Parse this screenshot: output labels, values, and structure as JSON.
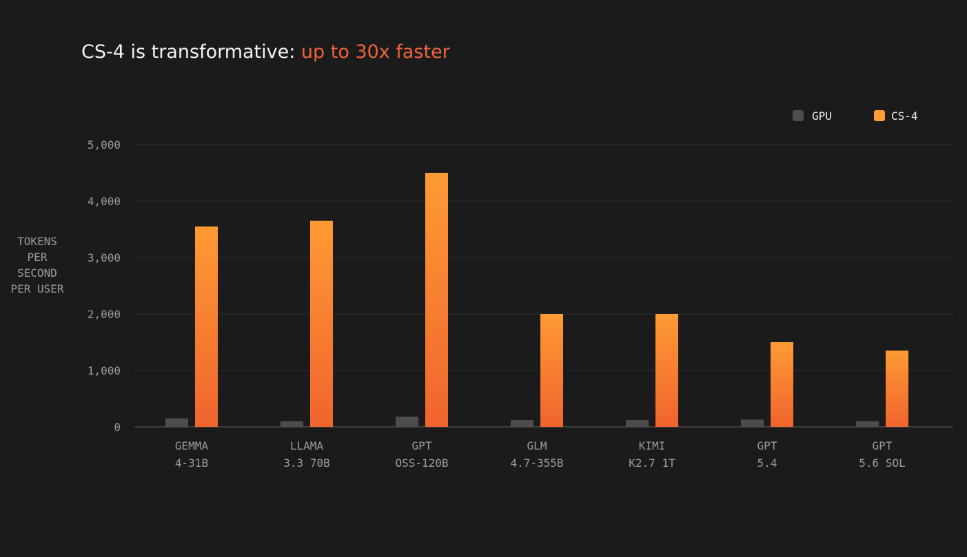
{
  "chart_data": {
    "type": "bar",
    "title": {
      "main": "CS-4 is transformative: ",
      "accent": "up to 30x faster"
    },
    "ylabel": [
      "TOKENS",
      "PER",
      "SECOND",
      "PER USER"
    ],
    "xlabel": "",
    "categories": [
      [
        "GEMMA",
        "4-31B"
      ],
      [
        "LLAMA",
        "3.3 70B"
      ],
      [
        "GPT",
        "OSS-120B"
      ],
      [
        "GLM",
        "4.7-355B"
      ],
      [
        "KIMI",
        "K2.7 1T"
      ],
      [
        "GPT",
        "5.4"
      ],
      [
        "GPT",
        "5.6 SOL"
      ]
    ],
    "series": [
      {
        "name": "GPU",
        "color": "#4d4d4d",
        "values": [
          150,
          100,
          180,
          120,
          120,
          130,
          100
        ]
      },
      {
        "name": "CS-4",
        "color": "#f0642e",
        "gradient_top": "#ff9a34",
        "values": [
          3550,
          3650,
          4500,
          2000,
          2000,
          1500,
          1350
        ]
      }
    ],
    "ylim": [
      0,
      5000
    ],
    "yticks": [
      0,
      1000,
      2000,
      3000,
      4000,
      5000
    ],
    "ytick_labels": [
      "0",
      "1,000",
      "2,000",
      "3,000",
      "4,000",
      "5,000"
    ],
    "grid": true,
    "legend_position": "top-right"
  }
}
